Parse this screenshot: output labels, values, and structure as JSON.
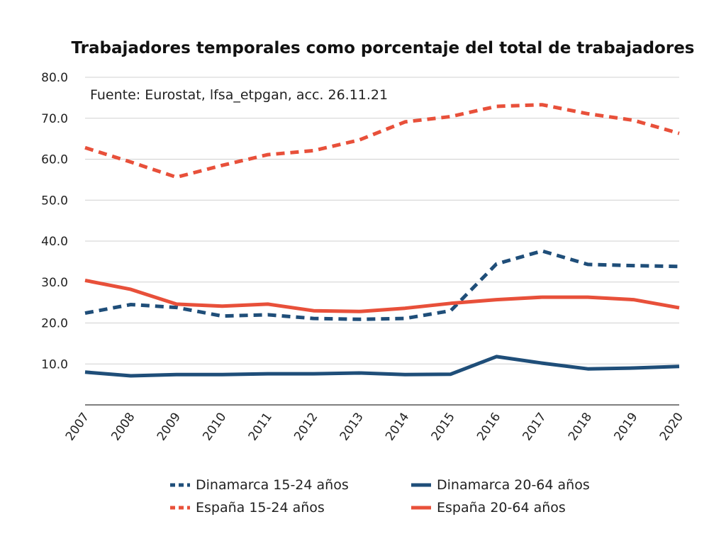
{
  "chart_data": {
    "type": "line",
    "title": "Trabajadores temporales como porcentaje del total de trabajadores",
    "annotation": "Fuente: Eurostat, lfsa_etpgan, acc. 26.11.21",
    "xlabel": "",
    "ylabel": "",
    "ylim": [
      0,
      80
    ],
    "yticks": [
      "10.0",
      "20.0",
      "30.0",
      "40.0",
      "50.0",
      "60.0",
      "70.0",
      "80.0"
    ],
    "ytick_values": [
      10,
      20,
      30,
      40,
      50,
      60,
      70,
      80
    ],
    "grid": true,
    "legend_placement": "bottom",
    "x": [
      "2007",
      "2008",
      "2009",
      "2010",
      "2011",
      "2012",
      "2013",
      "2014",
      "2015",
      "2016",
      "2017",
      "2018",
      "2019",
      "2020"
    ],
    "series": [
      {
        "name": "Dinamarca 15-24 años",
        "color": "#1f4e79",
        "dash": true,
        "values": [
          22.4,
          24.5,
          23.8,
          21.7,
          22.0,
          21.1,
          20.9,
          21.1,
          23.0,
          34.4,
          37.6,
          34.3,
          34.0,
          33.8
        ]
      },
      {
        "name": "Dinamarca 20-64 años",
        "color": "#1f4e79",
        "dash": false,
        "values": [
          8.0,
          7.1,
          7.4,
          7.4,
          7.6,
          7.6,
          7.8,
          7.4,
          7.5,
          11.8,
          10.2,
          8.8,
          9.0,
          9.4
        ]
      },
      {
        "name": "España 15-24 años",
        "color": "#e8503a",
        "dash": true,
        "values": [
          62.8,
          59.3,
          55.6,
          58.5,
          61.1,
          62.1,
          64.7,
          69.1,
          70.4,
          72.9,
          73.3,
          71.1,
          69.5,
          66.3
        ]
      },
      {
        "name": "España 20-64 años",
        "color": "#e8503a",
        "dash": false,
        "values": [
          30.4,
          28.2,
          24.6,
          24.1,
          24.6,
          23.0,
          22.8,
          23.6,
          24.8,
          25.7,
          26.3,
          26.3,
          25.7,
          23.7
        ]
      }
    ]
  }
}
